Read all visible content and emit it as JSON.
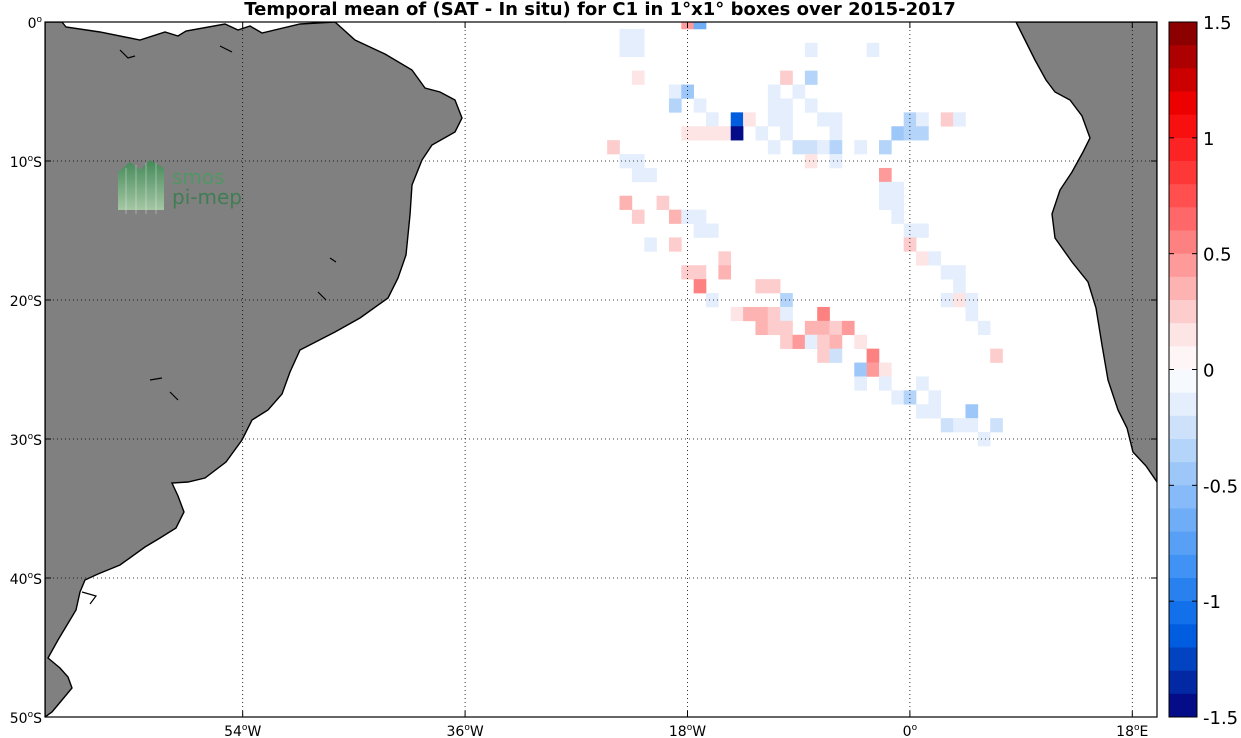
{
  "title": "Temporal mean of (SAT - In situ) for C1 in 1°x1° boxes over 2015-2017",
  "logo": {
    "line1": "smos",
    "line2": "pi-mep",
    "icon": "wave-logo-icon"
  },
  "colors": {
    "land": "#808080",
    "ocean": "#ffffff",
    "grid": "#000000"
  },
  "chart_data": {
    "type": "heatmap",
    "map_extent": {
      "lon": [
        -70,
        20
      ],
      "lat": [
        -50,
        0
      ]
    },
    "cell_size_deg": 1,
    "grid": true,
    "lat_ticks": [
      {
        "value": 0,
        "deg": "0",
        "hemi": ""
      },
      {
        "value": -10,
        "deg": "10",
        "hemi": "S"
      },
      {
        "value": -20,
        "deg": "20",
        "hemi": "S"
      },
      {
        "value": -30,
        "deg": "30",
        "hemi": "S"
      },
      {
        "value": -40,
        "deg": "40",
        "hemi": "S"
      },
      {
        "value": -50,
        "deg": "50",
        "hemi": "S"
      }
    ],
    "lon_ticks": [
      {
        "value": -54,
        "deg": "54",
        "hemi": "W"
      },
      {
        "value": -36,
        "deg": "36",
        "hemi": "W"
      },
      {
        "value": -18,
        "deg": "18",
        "hemi": "W"
      },
      {
        "value": 0,
        "deg": "0",
        "hemi": ""
      },
      {
        "value": 18,
        "deg": "18",
        "hemi": "E"
      }
    ],
    "colorbar": {
      "range": [
        -1.5,
        1.5
      ],
      "n_levels": 30,
      "ticks": [
        {
          "value": 1.5,
          "label": "1.5"
        },
        {
          "value": 1,
          "label": "1"
        },
        {
          "value": 0.5,
          "label": "0.5"
        },
        {
          "value": 0,
          "label": "0"
        },
        {
          "value": -0.5,
          "label": "-0.5"
        },
        {
          "value": -1,
          "label": "-1"
        },
        {
          "value": -1.5,
          "label": "-1.5"
        }
      ]
    },
    "cells": [
      {
        "lon": -18,
        "lat": 0,
        "v": 0.4
      },
      {
        "lon": -17,
        "lat": 0,
        "v": -0.7
      },
      {
        "lon": -23,
        "lat": -1,
        "v": -0.1
      },
      {
        "lon": -22,
        "lat": -1,
        "v": -0.15
      },
      {
        "lon": -23,
        "lat": -2,
        "v": -0.1
      },
      {
        "lon": -22,
        "lat": -2,
        "v": -0.15
      },
      {
        "lon": -8,
        "lat": -2,
        "v": -0.15
      },
      {
        "lon": -3,
        "lat": -2,
        "v": -0.15
      },
      {
        "lon": -22,
        "lat": -4,
        "v": 0.15
      },
      {
        "lon": -10,
        "lat": -4,
        "v": 0.25
      },
      {
        "lon": -8,
        "lat": -4,
        "v": -0.3
      },
      {
        "lon": -19,
        "lat": -5,
        "v": -0.1
      },
      {
        "lon": -18,
        "lat": -5,
        "v": -0.45
      },
      {
        "lon": -11,
        "lat": -5,
        "v": -0.1
      },
      {
        "lon": -9,
        "lat": -5,
        "v": -0.1
      },
      {
        "lon": -19,
        "lat": -6,
        "v": -0.3
      },
      {
        "lon": -17,
        "lat": -6,
        "v": -0.15
      },
      {
        "lon": -11,
        "lat": -6,
        "v": -0.1
      },
      {
        "lon": -10,
        "lat": -6,
        "v": -0.1
      },
      {
        "lon": -8,
        "lat": -6,
        "v": -0.1
      },
      {
        "lon": -16,
        "lat": -7,
        "v": -0.1
      },
      {
        "lon": -14,
        "lat": -7,
        "v": -1.2
      },
      {
        "lon": -13,
        "lat": -7,
        "v": 0.15
      },
      {
        "lon": -11,
        "lat": -7,
        "v": -0.1
      },
      {
        "lon": -10,
        "lat": -7,
        "v": -0.1
      },
      {
        "lon": -7,
        "lat": -7,
        "v": -0.1
      },
      {
        "lon": -6,
        "lat": -7,
        "v": -0.1
      },
      {
        "lon": 0,
        "lat": -7,
        "v": -0.3
      },
      {
        "lon": 1,
        "lat": -7,
        "v": -0.1
      },
      {
        "lon": 3,
        "lat": -7,
        "v": 0.2
      },
      {
        "lon": 4,
        "lat": -7,
        "v": -0.1
      },
      {
        "lon": -18,
        "lat": -8,
        "v": 0.15
      },
      {
        "lon": -17,
        "lat": -8,
        "v": 0.15
      },
      {
        "lon": -16,
        "lat": -8,
        "v": 0.15
      },
      {
        "lon": -15,
        "lat": -8,
        "v": 0.15
      },
      {
        "lon": -14,
        "lat": -8,
        "v": -1.45
      },
      {
        "lon": -12,
        "lat": -8,
        "v": -0.15
      },
      {
        "lon": -10,
        "lat": -8,
        "v": -0.1
      },
      {
        "lon": -6,
        "lat": -8,
        "v": -0.1
      },
      {
        "lon": -1,
        "lat": -8,
        "v": -0.5
      },
      {
        "lon": 0,
        "lat": -8,
        "v": -0.4
      },
      {
        "lon": 1,
        "lat": -8,
        "v": -0.4
      },
      {
        "lon": -24,
        "lat": -9,
        "v": 0.2
      },
      {
        "lon": -11,
        "lat": -9,
        "v": -0.1
      },
      {
        "lon": -9,
        "lat": -9,
        "v": -0.25
      },
      {
        "lon": -8,
        "lat": -9,
        "v": -0.25
      },
      {
        "lon": -7,
        "lat": -9,
        "v": -0.15
      },
      {
        "lon": -6,
        "lat": -9,
        "v": -0.4
      },
      {
        "lon": -4,
        "lat": -9,
        "v": -0.1
      },
      {
        "lon": -2,
        "lat": -9,
        "v": -0.3
      },
      {
        "lon": -23,
        "lat": -10,
        "v": -0.1
      },
      {
        "lon": -22,
        "lat": -10,
        "v": -0.1
      },
      {
        "lon": -8,
        "lat": -10,
        "v": 0.1
      },
      {
        "lon": -6,
        "lat": -10,
        "v": -0.1
      },
      {
        "lon": -22,
        "lat": -11,
        "v": -0.1
      },
      {
        "lon": -21,
        "lat": -11,
        "v": -0.1
      },
      {
        "lon": -2,
        "lat": -11,
        "v": 0.4
      },
      {
        "lon": -2,
        "lat": -12,
        "v": -0.1
      },
      {
        "lon": -1,
        "lat": -12,
        "v": -0.1
      },
      {
        "lon": -23,
        "lat": -13,
        "v": 0.3
      },
      {
        "lon": -20,
        "lat": -13,
        "v": 0.2
      },
      {
        "lon": -2,
        "lat": -13,
        "v": -0.1
      },
      {
        "lon": -1,
        "lat": -13,
        "v": -0.1
      },
      {
        "lon": -22,
        "lat": -14,
        "v": 0.2
      },
      {
        "lon": -19,
        "lat": -14,
        "v": 0.35
      },
      {
        "lon": -18,
        "lat": -14,
        "v": -0.1
      },
      {
        "lon": -17,
        "lat": -14,
        "v": -0.1
      },
      {
        "lon": -1,
        "lat": -14,
        "v": -0.1
      },
      {
        "lon": -17,
        "lat": -15,
        "v": -0.1
      },
      {
        "lon": -16,
        "lat": -15,
        "v": -0.1
      },
      {
        "lon": 0,
        "lat": -15,
        "v": -0.1
      },
      {
        "lon": 1,
        "lat": -15,
        "v": -0.1
      },
      {
        "lon": -21,
        "lat": -16,
        "v": -0.15
      },
      {
        "lon": -19,
        "lat": -16,
        "v": 0.25
      },
      {
        "lon": 0,
        "lat": -16,
        "v": 0.2
      },
      {
        "lon": -15,
        "lat": -17,
        "v": 0.2
      },
      {
        "lon": 1,
        "lat": -17,
        "v": 0.15
      },
      {
        "lon": 2,
        "lat": -17,
        "v": -0.1
      },
      {
        "lon": -18,
        "lat": -18,
        "v": 0.25
      },
      {
        "lon": -17,
        "lat": -18,
        "v": 0.25
      },
      {
        "lon": -15,
        "lat": -18,
        "v": 0.3
      },
      {
        "lon": 3,
        "lat": -18,
        "v": -0.1
      },
      {
        "lon": 4,
        "lat": -18,
        "v": -0.1
      },
      {
        "lon": -17,
        "lat": -19,
        "v": 0.5
      },
      {
        "lon": -12,
        "lat": -19,
        "v": 0.25
      },
      {
        "lon": -11,
        "lat": -19,
        "v": 0.25
      },
      {
        "lon": 4,
        "lat": -19,
        "v": -0.1
      },
      {
        "lon": -16,
        "lat": -20,
        "v": -0.1
      },
      {
        "lon": -10,
        "lat": -20,
        "v": -0.4
      },
      {
        "lon": 3,
        "lat": -20,
        "v": -0.1
      },
      {
        "lon": 4,
        "lat": -20,
        "v": 0.15
      },
      {
        "lon": 5,
        "lat": -20,
        "v": -0.1
      },
      {
        "lon": -14,
        "lat": -21,
        "v": 0.15
      },
      {
        "lon": -13,
        "lat": -21,
        "v": 0.35
      },
      {
        "lon": -12,
        "lat": -21,
        "v": 0.3
      },
      {
        "lon": -11,
        "lat": -21,
        "v": 0.25
      },
      {
        "lon": -10,
        "lat": -21,
        "v": -0.1
      },
      {
        "lon": -7,
        "lat": -21,
        "v": 0.55
      },
      {
        "lon": 5,
        "lat": -21,
        "v": -0.1
      },
      {
        "lon": -12,
        "lat": -22,
        "v": 0.3
      },
      {
        "lon": -11,
        "lat": -22,
        "v": 0.25
      },
      {
        "lon": -10,
        "lat": -22,
        "v": 0.2
      },
      {
        "lon": -8,
        "lat": -22,
        "v": 0.35
      },
      {
        "lon": -7,
        "lat": -22,
        "v": 0.3
      },
      {
        "lon": -6,
        "lat": -22,
        "v": 0.25
      },
      {
        "lon": -5,
        "lat": -22,
        "v": 0.45
      },
      {
        "lon": 6,
        "lat": -22,
        "v": -0.1
      },
      {
        "lon": -10,
        "lat": -23,
        "v": 0.25
      },
      {
        "lon": -9,
        "lat": -23,
        "v": 0.45
      },
      {
        "lon": -8,
        "lat": -23,
        "v": -0.1
      },
      {
        "lon": -7,
        "lat": -23,
        "v": 0.2
      },
      {
        "lon": -6,
        "lat": -23,
        "v": 0.35
      },
      {
        "lon": -4,
        "lat": -23,
        "v": 0.1
      },
      {
        "lon": -7,
        "lat": -24,
        "v": 0.2
      },
      {
        "lon": -6,
        "lat": -24,
        "v": -0.25
      },
      {
        "lon": -3,
        "lat": -24,
        "v": 0.55
      },
      {
        "lon": 7,
        "lat": -24,
        "v": 0.2
      },
      {
        "lon": -4,
        "lat": -25,
        "v": -0.45
      },
      {
        "lon": -3,
        "lat": -25,
        "v": 0.45
      },
      {
        "lon": -2,
        "lat": -25,
        "v": 0.15
      },
      {
        "lon": -4,
        "lat": -26,
        "v": -0.15
      },
      {
        "lon": -2,
        "lat": -26,
        "v": -0.1
      },
      {
        "lon": 1,
        "lat": -26,
        "v": -0.1
      },
      {
        "lon": -1,
        "lat": -27,
        "v": -0.15
      },
      {
        "lon": 0,
        "lat": -27,
        "v": -0.3
      },
      {
        "lon": 2,
        "lat": -27,
        "v": -0.1
      },
      {
        "lon": 1,
        "lat": -28,
        "v": -0.1
      },
      {
        "lon": 2,
        "lat": -28,
        "v": -0.15
      },
      {
        "lon": 5,
        "lat": -28,
        "v": -0.45
      },
      {
        "lon": 3,
        "lat": -29,
        "v": -0.25
      },
      {
        "lon": 4,
        "lat": -29,
        "v": -0.1
      },
      {
        "lon": 5,
        "lat": -29,
        "v": -0.2
      },
      {
        "lon": 7,
        "lat": -29,
        "v": -0.25
      },
      {
        "lon": 6,
        "lat": -30,
        "v": -0.2
      }
    ]
  }
}
